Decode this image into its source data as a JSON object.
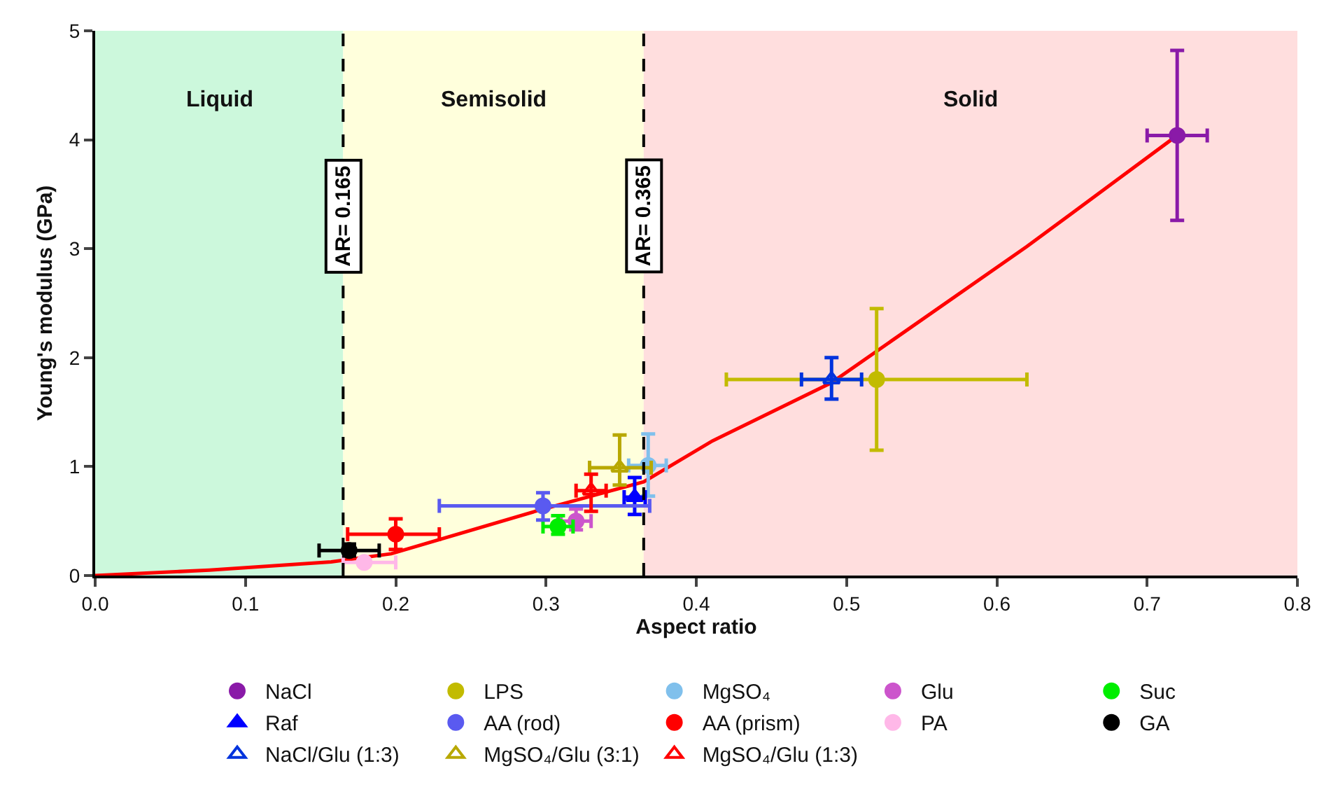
{
  "chart_data": {
    "type": "scatter",
    "xlabel": "Aspect ratio",
    "ylabel": "Young's modulus (GPa)",
    "xlim": [
      0,
      0.8
    ],
    "xticks": [
      {
        "value": 0,
        "label": "0.0"
      },
      0.1,
      0.2,
      0.3,
      0.4,
      0.5,
      0.6,
      0.7,
      0.8
    ],
    "ylim": [
      0,
      5
    ],
    "yticks": [
      0,
      1,
      2,
      3,
      4,
      5
    ],
    "grid": false,
    "legend": "bottom",
    "bands": [
      {
        "axis": "x",
        "from": 0,
        "to": 0.165,
        "label": "Liquid",
        "color": "#ccf8dc"
      },
      {
        "axis": "x",
        "from": 0.165,
        "to": 0.365,
        "label": "Semisolid",
        "color": "#ffffdc"
      },
      {
        "axis": "x",
        "from": 0.365,
        "to": 0.8,
        "label": "Solid",
        "color": "#ffdede"
      }
    ],
    "ref_lines": [
      {
        "axis": "x",
        "value": 0.165,
        "label": "AR= 0.165",
        "color": "#000000",
        "line_style": "dashed"
      },
      {
        "axis": "x",
        "value": 0.365,
        "label": "AR= 0.365",
        "color": "#000000",
        "line_style": "dashed"
      }
    ],
    "series": [
      {
        "type": "line",
        "color": "#ff0000",
        "marker": "none",
        "x": [
          0,
          0.076,
          0.157,
          0.197,
          0.293,
          0.365,
          0.41,
          0.49,
          0.62,
          0.72
        ],
        "values": [
          0,
          0.05,
          0.125,
          0.2,
          0.59,
          0.86,
          1.23,
          1.77,
          3.02,
          4.04
        ]
      },
      {
        "name": "NaCl",
        "color": "#8a1aa8",
        "marker": "circle",
        "x": [
          0.72
        ],
        "values": [
          4.04
        ],
        "errors": [
          [
            3.26,
            4.82
          ]
        ],
        "xerrors": [
          [
            0.7,
            0.74
          ]
        ]
      },
      {
        "name": "LPS",
        "color": "#c2bb00",
        "marker": "circle",
        "x": [
          0.52
        ],
        "values": [
          1.8
        ],
        "errors": [
          [
            1.15,
            2.45
          ]
        ],
        "xerrors": [
          [
            0.42,
            0.62
          ]
        ]
      },
      {
        "name": "MgSO₄",
        "color": "#80c0ec",
        "marker": "circle",
        "x": [
          0.368
        ],
        "values": [
          1.01
        ],
        "errors": [
          [
            0.73,
            1.3
          ]
        ],
        "xerrors": [
          [
            0.355,
            0.38
          ]
        ]
      },
      {
        "name": "Glu",
        "color": "#cc55cc",
        "marker": "circle",
        "x": [
          0.32
        ],
        "values": [
          0.5
        ],
        "errors": [
          [
            0.42,
            0.61
          ]
        ],
        "xerrors": [
          [
            0.31,
            0.33
          ]
        ]
      },
      {
        "name": "Suc",
        "color": "#00ee00",
        "marker": "circle",
        "x": [
          0.308
        ],
        "values": [
          0.45
        ],
        "errors": [
          [
            0.38,
            0.55
          ]
        ],
        "xerrors": [
          [
            0.298,
            0.318
          ]
        ]
      },
      {
        "name": "Raf",
        "color": "#0000ff",
        "marker": "triangle",
        "x": [
          0.359
        ],
        "values": [
          0.72
        ],
        "errors": [
          [
            0.56,
            0.9
          ]
        ],
        "xerrors": [
          [
            0.352,
            0.366
          ]
        ]
      },
      {
        "name": "AA (rod)",
        "color": "#5a5af0",
        "marker": "circle",
        "x": [
          0.298
        ],
        "values": [
          0.64
        ],
        "errors": [
          [
            0.51,
            0.76
          ]
        ],
        "xerrors": [
          [
            0.229,
            0.369
          ]
        ]
      },
      {
        "name": "AA (prism)",
        "color": "#ff0000",
        "marker": "circle",
        "x": [
          0.2
        ],
        "values": [
          0.38
        ],
        "errors": [
          [
            0.24,
            0.52
          ]
        ],
        "xerrors": [
          [
            0.168,
            0.229
          ]
        ]
      },
      {
        "name": "PA",
        "color": "#ffb8e8",
        "marker": "circle",
        "x": [
          0.179
        ],
        "values": [
          0.12
        ],
        "xerrors": [
          [
            0.165,
            0.2
          ]
        ]
      },
      {
        "name": "GA",
        "color": "#000000",
        "marker": "circle",
        "x": [
          0.169
        ],
        "values": [
          0.23
        ],
        "errors": [
          [
            0.18,
            0.29
          ]
        ],
        "xerrors": [
          [
            0.149,
            0.189
          ]
        ]
      },
      {
        "name": "NaCl/Glu (1:3)",
        "color": "#0033dd",
        "marker": "triangle-open",
        "x": [
          0.49
        ],
        "values": [
          1.8
        ],
        "errors": [
          [
            1.62,
            2.0
          ]
        ],
        "xerrors": [
          [
            0.47,
            0.51
          ]
        ]
      },
      {
        "name": "MgSO₄/Glu (3:1)",
        "color": "#b8a800",
        "marker": "triangle-open",
        "x": [
          0.349
        ],
        "values": [
          0.99
        ],
        "errors": [
          [
            0.83,
            1.29
          ]
        ],
        "xerrors": [
          [
            0.329,
            0.37
          ]
        ]
      },
      {
        "name": "MgSO₄/Glu (1:3)",
        "color": "#ff0000",
        "marker": "triangle-open",
        "x": [
          0.33
        ],
        "values": [
          0.78
        ],
        "errors": [
          [
            0.59,
            0.93
          ]
        ],
        "xerrors": [
          [
            0.32,
            0.34
          ]
        ]
      }
    ]
  }
}
